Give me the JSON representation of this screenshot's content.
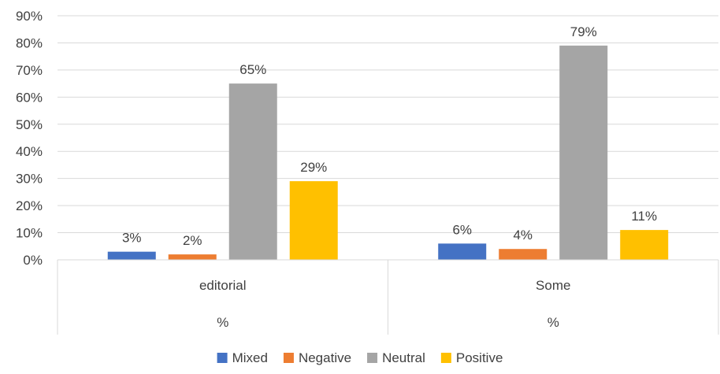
{
  "chart_data": {
    "type": "bar",
    "categories": [
      {
        "label": "editorial",
        "sublabel": "%"
      },
      {
        "label": "Some",
        "sublabel": "%"
      }
    ],
    "series": [
      {
        "name": "Mixed",
        "color": "#4472C4",
        "values": [
          3,
          6
        ],
        "labels": [
          "3%",
          "6%"
        ]
      },
      {
        "name": "Negative",
        "color": "#ED7D31",
        "values": [
          2,
          4
        ],
        "labels": [
          "2%",
          "4%"
        ]
      },
      {
        "name": "Neutral",
        "color": "#A5A5A5",
        "values": [
          65,
          79
        ],
        "labels": [
          "65%",
          "79%"
        ]
      },
      {
        "name": "Positive",
        "color": "#FFC000",
        "values": [
          29,
          11
        ],
        "labels": [
          "29%",
          "11%"
        ]
      }
    ],
    "ylim": [
      0,
      90
    ],
    "yticks": [
      0,
      10,
      20,
      30,
      40,
      50,
      60,
      70,
      80,
      90
    ],
    "ytick_labels": [
      "0%",
      "10%",
      "20%",
      "30%",
      "40%",
      "50%",
      "60%",
      "70%",
      "80%",
      "90%"
    ],
    "grid": true,
    "legend_position": "bottom",
    "title": "",
    "xlabel": "",
    "ylabel": ""
  }
}
